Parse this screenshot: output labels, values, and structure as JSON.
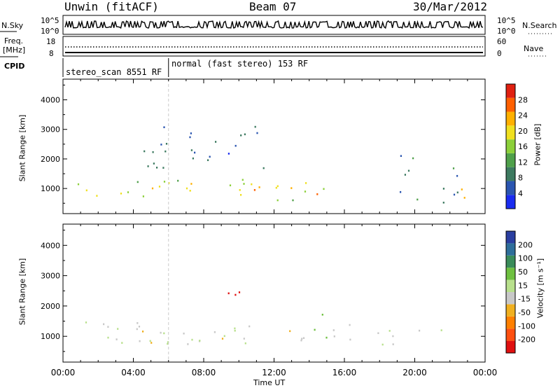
{
  "header": {
    "station": "Unwin (fitACF)",
    "beam": "Beam 07",
    "date": "30/Mar/2012"
  },
  "status_panel": {
    "nsky_label": "N.Sky",
    "nsky_ticks": [
      "10^5",
      "10^0"
    ],
    "nsearch_label": "N.Search",
    "nsearch_ticks": [
      "10^5",
      "10^0"
    ],
    "freq_label_1": "Freq.",
    "freq_label_2": "[MHz]",
    "freq_ticks": [
      "18",
      "8"
    ],
    "nave_label": "Nave",
    "nave_ticks": [
      "60",
      "0"
    ],
    "cpid_label": "CPID",
    "modes": [
      {
        "text": "stereo_scan 8551 RF",
        "start_hour": 0
      },
      {
        "text": "normal (fast stereo) 153 RF",
        "start_hour": 6
      }
    ]
  },
  "chart_data": [
    {
      "type": "heatmap",
      "panel": "power",
      "ylabel": "Slant Range [km]",
      "ylim": [
        150,
        4700
      ],
      "yticks": [
        1000,
        2000,
        3000,
        4000
      ],
      "xlim": [
        0,
        24
      ],
      "colorbar_label": "Power [dB]",
      "colorbar_ticks": [
        "4",
        "8",
        "12",
        "16",
        "20",
        "24",
        "28"
      ],
      "colorbar_colors": [
        "#1a2cf0",
        "#2a55b0",
        "#3d7a60",
        "#4fa04a",
        "#8cd03a",
        "#f0e020",
        "#ffb000",
        "#ff6000",
        "#e02010"
      ],
      "echo_regions": [
        {
          "t0": 0.3,
          "t1": 15.5,
          "r0": 600,
          "r1": 1400,
          "level": 18
        },
        {
          "t0": 4.0,
          "t1": 14.5,
          "r0": 800,
          "r1": 1200,
          "level": 24
        },
        {
          "t0": 4.5,
          "t1": 11.5,
          "r0": 1600,
          "r1": 3400,
          "level": 8
        },
        {
          "t0": 19.0,
          "t1": 22.5,
          "r0": 500,
          "r1": 2200,
          "level": 10
        },
        {
          "t0": 22.5,
          "t1": 23.8,
          "r0": 450,
          "r1": 1300,
          "level": 28
        }
      ]
    },
    {
      "type": "heatmap",
      "panel": "velocity",
      "ylabel": "Slant Range [km]",
      "xlabel": "Time UT",
      "ylim": [
        150,
        4700
      ],
      "yticks": [
        1000,
        2000,
        3000,
        4000
      ],
      "xlim": [
        0,
        24
      ],
      "xticks": [
        "00:00",
        "04:00",
        "08:00",
        "12:00",
        "16:00",
        "20:00",
        "00:00"
      ],
      "colorbar_label": "Velocity [m s⁻¹]",
      "colorbar_ticks": [
        "200",
        "100",
        "50",
        "15",
        "-15",
        "-50",
        "-100",
        "-200"
      ],
      "colorbar_colors": [
        "#2a3ea0",
        "#2e6e9a",
        "#3a8c5a",
        "#6ec040",
        "#b8e08c",
        "#c8c8c8",
        "#f0b020",
        "#ff8000",
        "#ff5010",
        "#e01010"
      ],
      "echo_regions": [
        {
          "t0": 0.3,
          "t1": 22.0,
          "r0": 700,
          "r1": 1500,
          "level": 0
        },
        {
          "t0": 4.0,
          "t1": 14.5,
          "r0": 800,
          "r1": 1300,
          "level": -40
        },
        {
          "t0": 8.5,
          "t1": 10.5,
          "r0": 1900,
          "r1": 2600,
          "level": -200
        },
        {
          "t0": 13.5,
          "t1": 15.0,
          "r0": 700,
          "r1": 1800,
          "level": 80
        }
      ]
    }
  ]
}
